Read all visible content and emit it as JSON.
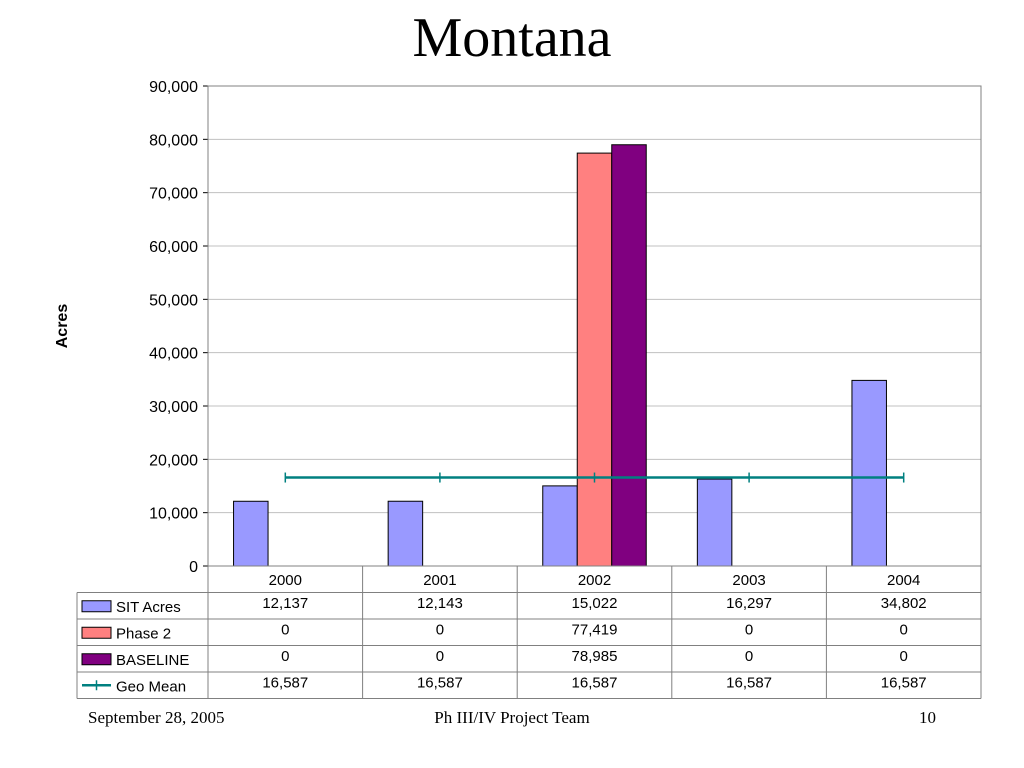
{
  "slide": {
    "title": "Montana",
    "footer_left": "September 28, 2005",
    "footer_center": "Ph III/IV Project Team",
    "footer_right": "10"
  },
  "chart_data": {
    "type": "bar",
    "title": "",
    "xlabel": "",
    "ylabel": "Acres",
    "ylim": [
      0,
      90000
    ],
    "yticks": [
      0,
      10000,
      20000,
      30000,
      40000,
      50000,
      60000,
      70000,
      80000,
      90000
    ],
    "ytick_labels": [
      "0",
      "10,000",
      "20,000",
      "30,000",
      "40,000",
      "50,000",
      "60,000",
      "70,000",
      "80,000",
      "90,000"
    ],
    "grid": true,
    "legend": "data-table",
    "categories": [
      "2000",
      "2001",
      "2002",
      "2003",
      "2004"
    ],
    "series": [
      {
        "name": "SIT Acres",
        "kind": "bar",
        "color": "#9999ff",
        "values": [
          12137,
          12143,
          15022,
          16297,
          34802
        ],
        "labels": [
          "12,137",
          "12,143",
          "15,022",
          "16,297",
          "34,802"
        ]
      },
      {
        "name": "Phase 2",
        "kind": "bar",
        "color": "#ff8080",
        "values": [
          0,
          0,
          77419,
          0,
          0
        ],
        "labels": [
          "0",
          "0",
          "77,419",
          "0",
          "0"
        ]
      },
      {
        "name": "BASELINE",
        "kind": "bar",
        "color": "#800080",
        "values": [
          0,
          0,
          78985,
          0,
          0
        ],
        "labels": [
          "0",
          "0",
          "78,985",
          "0",
          "0"
        ]
      },
      {
        "name": "Geo Mean",
        "kind": "line",
        "color": "#008080",
        "values": [
          16587,
          16587,
          16587,
          16587,
          16587
        ],
        "labels": [
          "16,587",
          "16,587",
          "16,587",
          "16,587",
          "16,587"
        ]
      }
    ]
  }
}
